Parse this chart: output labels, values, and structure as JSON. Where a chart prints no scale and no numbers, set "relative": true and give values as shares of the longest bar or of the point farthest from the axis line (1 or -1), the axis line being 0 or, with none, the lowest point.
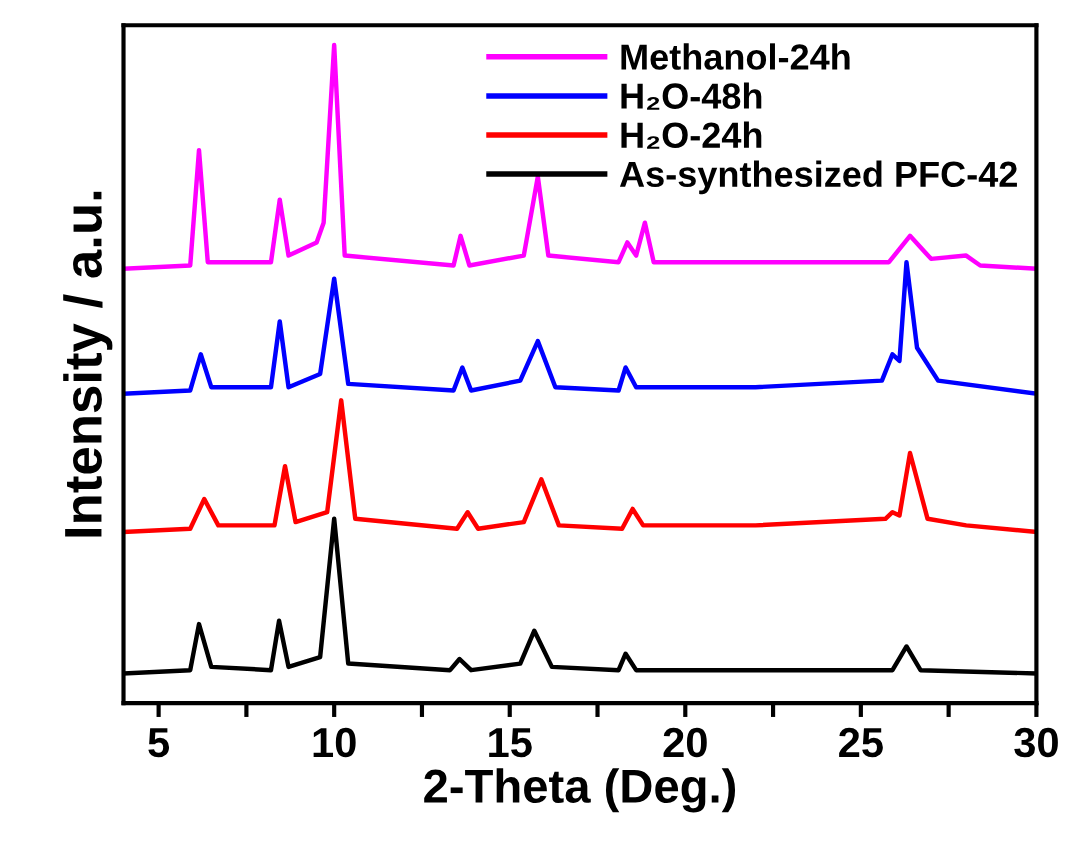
{
  "chart_data": {
    "type": "line",
    "xlabel": "2-Theta (Deg.)",
    "ylabel": "Intensity / a.u.",
    "relative": true,
    "tick_labels": "x",
    "legend": "top right",
    "xlim": [
      4,
      30
    ],
    "xticks": [
      5,
      {
        "value": 7.5,
        "label": null
      },
      10,
      {
        "value": 12.5,
        "label": null
      },
      15,
      {
        "value": 17.5,
        "label": null
      },
      20,
      {
        "value": 22.5,
        "label": null
      },
      25,
      {
        "value": 27.5,
        "label": null
      },
      30
    ],
    "series": [
      {
        "name": "Methanol-24h",
        "color": "#ff00ff",
        "x": [
          4,
          5.9,
          6.15,
          6.4,
          8.2,
          8.45,
          8.7,
          9.5,
          9.7,
          10,
          10.3,
          13.4,
          13.6,
          13.85,
          15.4,
          15.8,
          16.1,
          18.1,
          18.35,
          18.6,
          18.85,
          19.1,
          25.8,
          26.4,
          27,
          28,
          28.4,
          30
        ],
        "values": [
          0.66,
          0.665,
          0.84,
          0.67,
          0.67,
          0.765,
          0.68,
          0.7,
          0.73,
          1.0,
          0.68,
          0.665,
          0.71,
          0.665,
          0.68,
          0.8,
          0.68,
          0.67,
          0.7,
          0.68,
          0.73,
          0.67,
          0.67,
          0.71,
          0.675,
          0.68,
          0.665,
          0.66
        ]
      },
      {
        "name": "H₂O-48h",
        "color": "#0000ff",
        "x": [
          4,
          5.9,
          6.2,
          6.5,
          8.2,
          8.45,
          8.7,
          9.6,
          10,
          10.4,
          13.4,
          13.65,
          13.9,
          15.3,
          15.8,
          16.3,
          18.1,
          18.3,
          18.6,
          22,
          25.6,
          25.9,
          26.1,
          26.3,
          26.6,
          27.2,
          30
        ],
        "values": [
          0.47,
          0.475,
          0.53,
          0.48,
          0.48,
          0.58,
          0.48,
          0.5,
          0.645,
          0.485,
          0.475,
          0.51,
          0.475,
          0.49,
          0.55,
          0.48,
          0.475,
          0.51,
          0.48,
          0.48,
          0.49,
          0.53,
          0.52,
          0.67,
          0.54,
          0.49,
          0.47
        ]
      },
      {
        "name": "H₂O-24h",
        "color": "#ff0000",
        "x": [
          4,
          5.9,
          6.3,
          6.7,
          8.3,
          8.6,
          8.9,
          9.8,
          10.2,
          10.6,
          13.5,
          13.8,
          14.1,
          15.4,
          15.9,
          16.4,
          18.2,
          18.5,
          18.8,
          22,
          25.7,
          25.9,
          26.1,
          26.4,
          26.9,
          28,
          30
        ],
        "values": [
          0.26,
          0.265,
          0.31,
          0.27,
          0.27,
          0.36,
          0.275,
          0.29,
          0.46,
          0.28,
          0.265,
          0.29,
          0.265,
          0.275,
          0.34,
          0.27,
          0.265,
          0.295,
          0.27,
          0.27,
          0.28,
          0.29,
          0.285,
          0.38,
          0.28,
          0.27,
          0.26
        ]
      },
      {
        "name": "As-synthesized PFC-42",
        "color": "#000000",
        "x": [
          4,
          5.9,
          6.15,
          6.5,
          8.2,
          8.43,
          8.7,
          9.6,
          10,
          10.4,
          13.3,
          13.57,
          13.9,
          15.3,
          15.7,
          16.2,
          18.1,
          18.3,
          18.6,
          25.9,
          26.3,
          26.7,
          30
        ],
        "values": [
          0.045,
          0.05,
          0.12,
          0.055,
          0.05,
          0.125,
          0.055,
          0.07,
          0.28,
          0.06,
          0.05,
          0.067,
          0.05,
          0.06,
          0.11,
          0.055,
          0.05,
          0.075,
          0.05,
          0.05,
          0.086,
          0.05,
          0.045
        ]
      }
    ]
  }
}
